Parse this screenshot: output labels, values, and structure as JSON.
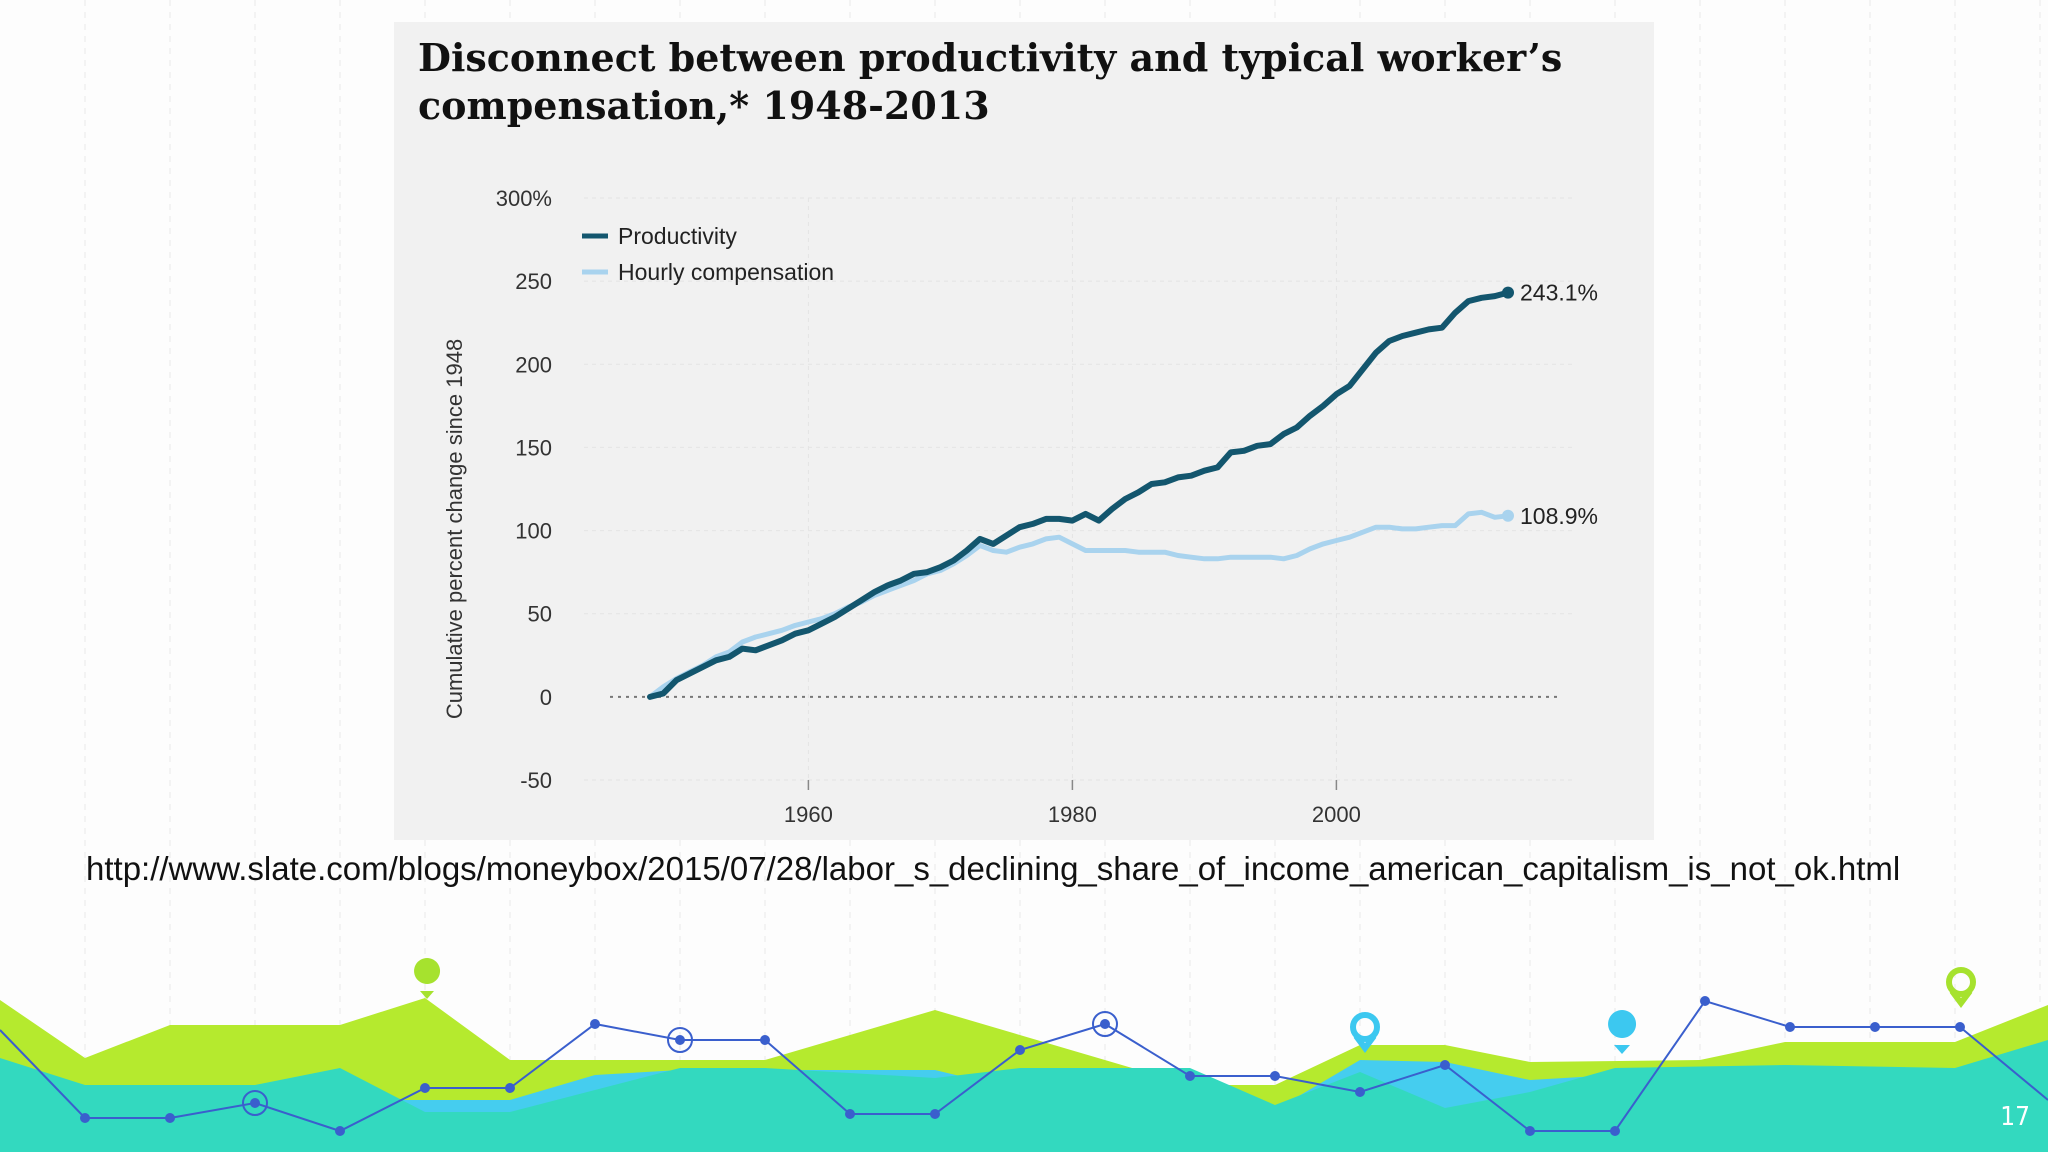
{
  "slide": {
    "source_url": "http://www.slate.com/blogs/moneybox/2015/07/28/labor_s_declining_share_of_income_american_capitalism_is_not_ok.html",
    "page_number": "17"
  },
  "colors": {
    "productivity": "#13566e",
    "compensation": "#a9d3ee",
    "accent_green": "#a6e22e",
    "accent_teal": "#2ed6c1",
    "accent_cyan": "#3cc8f0",
    "accent_blue": "#3a5fcd"
  },
  "chart_data": {
    "type": "line",
    "title": "Disconnect between productivity and typical worker’s compensation,* 1948-2013",
    "ylabel": "Cumulative percent change since 1948",
    "xlabel": "",
    "xlim": [
      1943,
      2018
    ],
    "ylim": [
      -50,
      300
    ],
    "yticks": [
      -50,
      0,
      50,
      100,
      150,
      200,
      250,
      300
    ],
    "ytick_labels": [
      "-50",
      "0",
      "50",
      "100",
      "150",
      "200",
      "250",
      "300%"
    ],
    "xticks": [
      1960,
      1980,
      2000
    ],
    "xtick_labels": [
      "1960",
      "1980",
      "2000"
    ],
    "reference_line": 0,
    "legend": {
      "position": "top-left",
      "entries": [
        "Productivity",
        "Hourly compensation"
      ]
    },
    "series": [
      {
        "name": "Productivity",
        "end_label": "243.1%",
        "x": [
          1948,
          1949,
          1950,
          1951,
          1952,
          1953,
          1954,
          1955,
          1956,
          1957,
          1958,
          1959,
          1960,
          1961,
          1962,
          1963,
          1964,
          1965,
          1966,
          1967,
          1968,
          1969,
          1970,
          1971,
          1972,
          1973,
          1974,
          1975,
          1976,
          1977,
          1978,
          1979,
          1980,
          1981,
          1982,
          1983,
          1984,
          1985,
          1986,
          1987,
          1988,
          1989,
          1990,
          1991,
          1992,
          1993,
          1994,
          1995,
          1996,
          1997,
          1998,
          1999,
          2000,
          2001,
          2002,
          2003,
          2004,
          2005,
          2006,
          2007,
          2008,
          2009,
          2010,
          2011,
          2012,
          2013
        ],
        "values": [
          0,
          2,
          10,
          14,
          18,
          22,
          24,
          29,
          28,
          31,
          34,
          38,
          40,
          44,
          48,
          53,
          58,
          63,
          67,
          70,
          74,
          75,
          78,
          82,
          88,
          95,
          92,
          97,
          102,
          104,
          107,
          107,
          106,
          110,
          106,
          113,
          119,
          123,
          128,
          129,
          132,
          133,
          136,
          138,
          147,
          148,
          151,
          152,
          158,
          162,
          169,
          175,
          182,
          187,
          197,
          207,
          214,
          217,
          219,
          221,
          222,
          231,
          238,
          240,
          241,
          243.1
        ]
      },
      {
        "name": "Hourly compensation",
        "end_label": "108.9%",
        "x": [
          1948,
          1949,
          1950,
          1951,
          1952,
          1953,
          1954,
          1955,
          1956,
          1957,
          1958,
          1959,
          1960,
          1961,
          1962,
          1963,
          1964,
          1965,
          1966,
          1967,
          1968,
          1969,
          1970,
          1971,
          1972,
          1973,
          1974,
          1975,
          1976,
          1977,
          1978,
          1979,
          1980,
          1981,
          1982,
          1983,
          1984,
          1985,
          1986,
          1987,
          1988,
          1989,
          1990,
          1991,
          1992,
          1993,
          1994,
          1995,
          1996,
          1997,
          1998,
          1999,
          2000,
          2001,
          2002,
          2003,
          2004,
          2005,
          2006,
          2007,
          2008,
          2009,
          2010,
          2011,
          2012,
          2013
        ],
        "values": [
          0,
          6,
          11,
          15,
          19,
          24,
          27,
          33,
          36,
          38,
          40,
          43,
          45,
          47,
          50,
          54,
          57,
          61,
          64,
          67,
          70,
          74,
          76,
          80,
          85,
          91,
          88,
          87,
          90,
          92,
          95,
          96,
          92,
          88,
          88,
          88,
          88,
          87,
          87,
          87,
          85,
          84,
          83,
          83,
          84,
          84,
          84,
          84,
          83,
          85,
          89,
          92,
          94,
          96,
          99,
          102,
          102,
          101,
          101,
          102,
          103,
          103,
          110,
          111,
          108,
          108.9
        ]
      }
    ]
  }
}
